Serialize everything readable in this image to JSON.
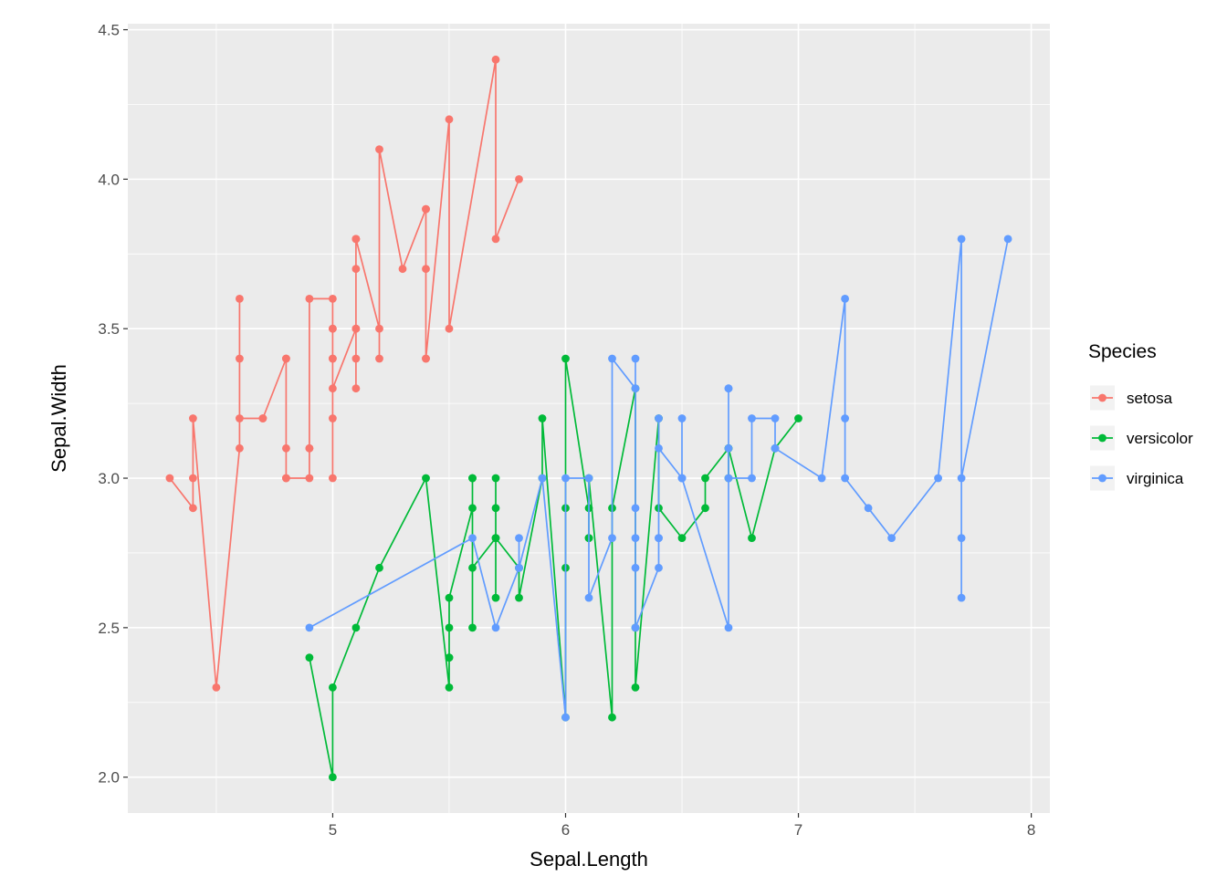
{
  "chart_data": {
    "type": "line",
    "title": "",
    "xlabel": "Sepal.Length",
    "ylabel": "Sepal.Width",
    "xlim": [
      4.12,
      8.08
    ],
    "ylim": [
      1.88,
      4.52
    ],
    "x_major_ticks": [
      5,
      6,
      7,
      8
    ],
    "x_minor_ticks": [
      4.5,
      5.5,
      6.5,
      7.5
    ],
    "y_major_ticks": [
      2.0,
      2.5,
      3.0,
      3.5,
      4.0,
      4.5
    ],
    "y_minor_ticks": [
      2.25,
      2.75,
      3.25,
      3.75,
      4.25
    ],
    "x_tick_labels": [
      "5",
      "6",
      "7",
      "8"
    ],
    "y_tick_labels": [
      "2.0",
      "2.5",
      "3.0",
      "3.5",
      "4.0",
      "4.5"
    ],
    "grid": true,
    "panel_background": "#EBEBEB",
    "grid_color": "#FFFFFF",
    "tick_color": "#333333",
    "legend_key_fill": "#F2F2F2",
    "legend": {
      "title": "Species",
      "position": "right"
    },
    "series": [
      {
        "name": "setosa",
        "color": "#F8766D",
        "points": [
          [
            5.1,
            3.5
          ],
          [
            4.9,
            3.0
          ],
          [
            4.7,
            3.2
          ],
          [
            4.6,
            3.1
          ],
          [
            5.0,
            3.6
          ],
          [
            5.4,
            3.9
          ],
          [
            4.6,
            3.4
          ],
          [
            5.0,
            3.4
          ],
          [
            4.4,
            2.9
          ],
          [
            4.9,
            3.1
          ],
          [
            5.4,
            3.7
          ],
          [
            4.8,
            3.4
          ],
          [
            4.8,
            3.0
          ],
          [
            4.3,
            3.0
          ],
          [
            5.8,
            4.0
          ],
          [
            5.7,
            4.4
          ],
          [
            5.4,
            3.9
          ],
          [
            5.1,
            3.5
          ],
          [
            5.7,
            3.8
          ],
          [
            5.1,
            3.8
          ],
          [
            5.4,
            3.4
          ],
          [
            5.1,
            3.7
          ],
          [
            4.6,
            3.6
          ],
          [
            5.1,
            3.3
          ],
          [
            4.8,
            3.4
          ],
          [
            5.0,
            3.0
          ],
          [
            5.0,
            3.4
          ],
          [
            5.2,
            3.5
          ],
          [
            5.2,
            3.4
          ],
          [
            4.7,
            3.2
          ],
          [
            4.8,
            3.1
          ],
          [
            5.4,
            3.4
          ],
          [
            5.2,
            4.1
          ],
          [
            5.5,
            4.2
          ],
          [
            4.9,
            3.1
          ],
          [
            5.0,
            3.2
          ],
          [
            5.5,
            3.5
          ],
          [
            4.9,
            3.6
          ],
          [
            4.4,
            3.0
          ],
          [
            5.1,
            3.4
          ],
          [
            5.0,
            3.5
          ],
          [
            4.5,
            2.3
          ],
          [
            4.4,
            3.2
          ],
          [
            5.0,
            3.5
          ],
          [
            5.1,
            3.8
          ],
          [
            4.8,
            3.0
          ],
          [
            5.1,
            3.8
          ],
          [
            4.6,
            3.2
          ],
          [
            5.3,
            3.7
          ],
          [
            5.0,
            3.3
          ]
        ]
      },
      {
        "name": "versicolor",
        "color": "#00BA38",
        "points": [
          [
            7.0,
            3.2
          ],
          [
            6.4,
            3.2
          ],
          [
            6.9,
            3.1
          ],
          [
            5.5,
            2.3
          ],
          [
            6.5,
            2.8
          ],
          [
            5.7,
            2.8
          ],
          [
            6.3,
            3.3
          ],
          [
            4.9,
            2.4
          ],
          [
            6.6,
            2.9
          ],
          [
            5.2,
            2.7
          ],
          [
            5.0,
            2.0
          ],
          [
            5.9,
            3.0
          ],
          [
            6.0,
            2.2
          ],
          [
            6.1,
            2.9
          ],
          [
            5.6,
            2.9
          ],
          [
            6.7,
            3.1
          ],
          [
            5.6,
            3.0
          ],
          [
            5.8,
            2.7
          ],
          [
            6.2,
            2.2
          ],
          [
            5.6,
            2.5
          ],
          [
            5.9,
            3.2
          ],
          [
            6.1,
            2.8
          ],
          [
            6.3,
            2.5
          ],
          [
            6.1,
            2.8
          ],
          [
            6.4,
            2.9
          ],
          [
            6.6,
            3.0
          ],
          [
            6.8,
            2.8
          ],
          [
            6.7,
            3.0
          ],
          [
            6.0,
            2.9
          ],
          [
            5.7,
            2.6
          ],
          [
            5.5,
            2.4
          ],
          [
            5.5,
            2.4
          ],
          [
            5.8,
            2.7
          ],
          [
            6.0,
            2.7
          ],
          [
            5.4,
            3.0
          ],
          [
            6.0,
            3.4
          ],
          [
            6.7,
            3.1
          ],
          [
            6.3,
            2.3
          ],
          [
            5.6,
            3.0
          ],
          [
            5.5,
            2.5
          ],
          [
            5.5,
            2.6
          ],
          [
            6.1,
            3.0
          ],
          [
            5.8,
            2.6
          ],
          [
            5.0,
            2.3
          ],
          [
            5.6,
            2.7
          ],
          [
            5.7,
            3.0
          ],
          [
            5.7,
            2.9
          ],
          [
            6.2,
            2.9
          ],
          [
            5.1,
            2.5
          ],
          [
            5.7,
            2.8
          ]
        ]
      },
      {
        "name": "virginica",
        "color": "#619CFF",
        "points": [
          [
            6.3,
            3.3
          ],
          [
            5.8,
            2.7
          ],
          [
            7.1,
            3.0
          ],
          [
            6.3,
            2.9
          ],
          [
            6.5,
            3.0
          ],
          [
            7.6,
            3.0
          ],
          [
            4.9,
            2.5
          ],
          [
            7.3,
            2.9
          ],
          [
            6.7,
            2.5
          ],
          [
            7.2,
            3.6
          ],
          [
            6.5,
            3.2
          ],
          [
            6.4,
            2.7
          ],
          [
            6.8,
            3.0
          ],
          [
            5.7,
            2.5
          ],
          [
            5.8,
            2.8
          ],
          [
            6.4,
            3.2
          ],
          [
            6.5,
            3.0
          ],
          [
            7.7,
            3.8
          ],
          [
            7.7,
            2.6
          ],
          [
            6.0,
            2.2
          ],
          [
            6.9,
            3.2
          ],
          [
            5.6,
            2.8
          ],
          [
            7.7,
            2.8
          ],
          [
            6.3,
            2.7
          ],
          [
            6.7,
            3.3
          ],
          [
            7.2,
            3.2
          ],
          [
            6.2,
            2.8
          ],
          [
            6.1,
            3.0
          ],
          [
            6.4,
            2.8
          ],
          [
            7.2,
            3.0
          ],
          [
            7.4,
            2.8
          ],
          [
            7.9,
            3.8
          ],
          [
            6.4,
            2.8
          ],
          [
            6.3,
            2.8
          ],
          [
            6.1,
            2.6
          ],
          [
            7.7,
            3.0
          ],
          [
            6.3,
            3.4
          ],
          [
            6.4,
            3.1
          ],
          [
            6.0,
            3.0
          ],
          [
            6.9,
            3.1
          ],
          [
            6.7,
            3.1
          ],
          [
            6.9,
            3.1
          ],
          [
            5.8,
            2.7
          ],
          [
            6.8,
            3.2
          ],
          [
            6.7,
            3.3
          ],
          [
            6.7,
            3.0
          ],
          [
            6.3,
            2.5
          ],
          [
            6.5,
            3.0
          ],
          [
            6.2,
            3.4
          ],
          [
            5.9,
            3.0
          ]
        ]
      }
    ]
  }
}
